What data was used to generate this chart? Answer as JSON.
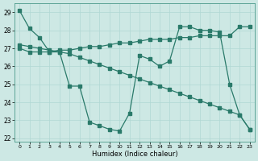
{
  "xlabel": "Humidex (Indice chaleur)",
  "bg_color": "#cde8e4",
  "grid_color": "#b0d8d4",
  "line_color": "#2a7a6a",
  "xlim": [
    -0.5,
    23.5
  ],
  "ylim": [
    21.8,
    29.5
  ],
  "yticks": [
    22,
    23,
    24,
    25,
    26,
    27,
    28,
    29
  ],
  "xticks": [
    0,
    1,
    2,
    3,
    4,
    5,
    6,
    7,
    8,
    9,
    10,
    11,
    12,
    13,
    14,
    15,
    16,
    17,
    18,
    19,
    20,
    21,
    22,
    23
  ],
  "line1_x": [
    0,
    1,
    2,
    3,
    4,
    5,
    6,
    7,
    8,
    9,
    10,
    11,
    12,
    13,
    14,
    15,
    16,
    17,
    18,
    19,
    20,
    21,
    22,
    23
  ],
  "line1_y": [
    29.1,
    28.1,
    27.6,
    26.8,
    26.8,
    24.9,
    24.9,
    22.9,
    22.7,
    22.5,
    22.4,
    23.4,
    26.6,
    26.4,
    26.0,
    26.3,
    28.2,
    28.2,
    28.0,
    28.0,
    27.9,
    25.0,
    23.3,
    22.5
  ],
  "line2_x": [
    0,
    1,
    2,
    3,
    4,
    5,
    6,
    7,
    8,
    9,
    10,
    11,
    12,
    13,
    14,
    15,
    16,
    17,
    18,
    19,
    20,
    21,
    22,
    23
  ],
  "line2_y": [
    27.0,
    26.8,
    26.8,
    26.8,
    26.9,
    26.9,
    27.0,
    27.1,
    27.1,
    27.2,
    27.3,
    27.3,
    27.4,
    27.5,
    27.5,
    27.5,
    27.6,
    27.6,
    27.7,
    27.7,
    27.7,
    27.7,
    28.2,
    28.2
  ],
  "line3_x": [
    0,
    1,
    2,
    3,
    4,
    5,
    6,
    7,
    8,
    9,
    10,
    11,
    12,
    13,
    14,
    15,
    16,
    17,
    18,
    19,
    20,
    21,
    22,
    23
  ],
  "line3_y": [
    27.2,
    27.1,
    27.0,
    26.9,
    26.8,
    26.7,
    26.5,
    26.3,
    26.1,
    25.9,
    25.7,
    25.5,
    25.3,
    25.1,
    24.9,
    24.7,
    24.5,
    24.3,
    24.1,
    23.9,
    23.7,
    23.5,
    23.3,
    22.5
  ]
}
